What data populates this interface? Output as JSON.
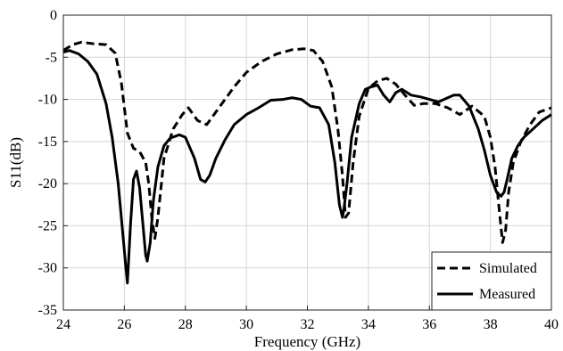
{
  "chart_data": {
    "type": "line",
    "xlabel": "Frequency (GHz)",
    "ylabel": "S11(dB)",
    "xlim": [
      24,
      40
    ],
    "ylim": [
      -35,
      0
    ],
    "xticks": [
      24,
      26,
      28,
      30,
      32,
      34,
      36,
      38,
      40
    ],
    "yticks": [
      0,
      -5,
      -10,
      -15,
      -20,
      -25,
      -30,
      -35
    ],
    "grid": true,
    "legend_position": "bottom-right",
    "series": [
      {
        "name": "Simulated",
        "style": "dashed",
        "color": "#000000",
        "x": [
          24.0,
          24.3,
          24.6,
          25.0,
          25.4,
          25.7,
          25.9,
          26.1,
          26.3,
          26.5,
          26.7,
          26.8,
          26.9,
          27.0,
          27.1,
          27.3,
          27.6,
          27.9,
          28.1,
          28.4,
          28.7,
          29.0,
          29.3,
          29.6,
          30.0,
          30.5,
          31.0,
          31.5,
          31.9,
          32.2,
          32.5,
          32.8,
          33.0,
          33.15,
          33.25,
          33.35,
          33.5,
          33.7,
          34.0,
          34.3,
          34.6,
          34.9,
          35.2,
          35.5,
          35.8,
          36.2,
          36.6,
          37.0,
          37.4,
          37.8,
          38.0,
          38.15,
          38.3,
          38.4,
          38.5,
          38.6,
          38.75,
          39.0,
          39.3,
          39.6,
          40.0
        ],
        "values": [
          -4.2,
          -3.5,
          -3.2,
          -3.4,
          -3.5,
          -4.5,
          -8.0,
          -14.0,
          -15.8,
          -16.2,
          -17.5,
          -20.0,
          -24.0,
          -26.5,
          -24.0,
          -17.0,
          -13.5,
          -11.8,
          -11.0,
          -12.5,
          -13.0,
          -11.5,
          -10.0,
          -8.5,
          -6.8,
          -5.5,
          -4.6,
          -4.1,
          -4.0,
          -4.2,
          -5.5,
          -8.5,
          -13.5,
          -19.0,
          -24.0,
          -23.5,
          -17.5,
          -12.0,
          -8.7,
          -7.8,
          -7.5,
          -8.2,
          -9.5,
          -10.7,
          -10.5,
          -10.5,
          -11.0,
          -11.8,
          -10.8,
          -12.0,
          -14.5,
          -18.0,
          -23.5,
          -27.0,
          -25.5,
          -21.0,
          -17.5,
          -15.0,
          -13.0,
          -11.5,
          -11.0
        ]
      },
      {
        "name": "Measured",
        "style": "solid",
        "color": "#000000",
        "x": [
          24.0,
          24.2,
          24.5,
          24.8,
          25.1,
          25.4,
          25.6,
          25.8,
          25.95,
          26.05,
          26.1,
          26.2,
          26.3,
          26.4,
          26.5,
          26.6,
          26.7,
          26.75,
          26.85,
          26.95,
          27.1,
          27.3,
          27.5,
          27.8,
          28.0,
          28.3,
          28.5,
          28.65,
          28.8,
          29.0,
          29.3,
          29.6,
          30.0,
          30.4,
          30.8,
          31.2,
          31.5,
          31.8,
          32.1,
          32.4,
          32.7,
          32.9,
          33.05,
          33.15,
          33.2,
          33.3,
          33.45,
          33.7,
          33.9,
          34.1,
          34.3,
          34.5,
          34.7,
          34.9,
          35.1,
          35.4,
          35.7,
          36.0,
          36.3,
          36.6,
          36.8,
          37.0,
          37.3,
          37.6,
          37.8,
          38.0,
          38.2,
          38.35,
          38.45,
          38.55,
          38.7,
          38.9,
          39.1,
          39.4,
          39.7,
          40.0
        ],
        "values": [
          -4.4,
          -4.2,
          -4.6,
          -5.5,
          -7.0,
          -10.5,
          -14.5,
          -20.0,
          -26.0,
          -30.0,
          -31.8,
          -25.0,
          -19.5,
          -18.5,
          -20.5,
          -24.5,
          -28.5,
          -29.2,
          -27.0,
          -22.0,
          -18.0,
          -15.5,
          -14.6,
          -14.2,
          -14.5,
          -17.0,
          -19.5,
          -19.8,
          -19.0,
          -17.0,
          -14.8,
          -13.0,
          -11.8,
          -11.0,
          -10.1,
          -10.0,
          -9.8,
          -10.0,
          -10.8,
          -11.0,
          -13.0,
          -17.5,
          -22.5,
          -24.0,
          -23.0,
          -20.0,
          -14.5,
          -10.5,
          -8.8,
          -8.5,
          -8.3,
          -9.5,
          -10.3,
          -9.2,
          -8.8,
          -9.5,
          -9.7,
          -10.0,
          -10.3,
          -9.8,
          -9.5,
          -9.5,
          -10.8,
          -13.5,
          -16.0,
          -19.0,
          -21.0,
          -21.5,
          -21.0,
          -19.5,
          -17.0,
          -15.5,
          -14.5,
          -13.5,
          -12.5,
          -11.8
        ]
      }
    ]
  }
}
